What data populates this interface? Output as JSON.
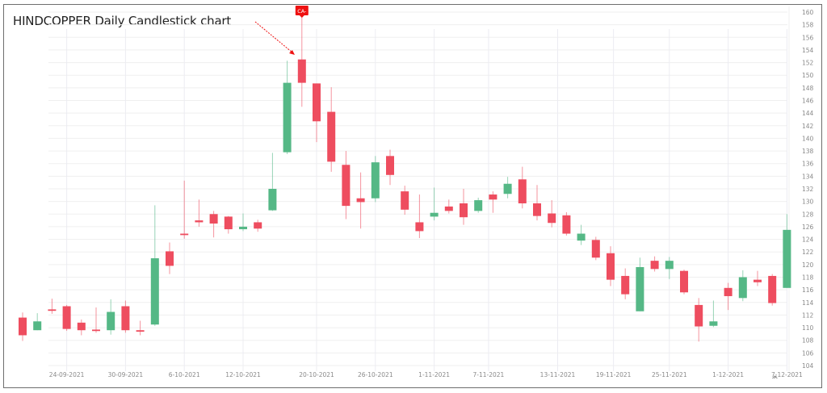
{
  "title": "HINDCOPPER Daily Candlestick chart",
  "marker": {
    "label": "CA-",
    "color": "#ee1111",
    "candle_index": 19
  },
  "colors": {
    "up": "#55b886",
    "down": "#ee4d5f",
    "grid": "#efefef",
    "axis_text": "#8a8a8a",
    "arrow": "#ee1111"
  },
  "chart_data": {
    "type": "candlestick",
    "title": "HINDCOPPER Daily Candlestick chart",
    "xlabel": "",
    "ylabel": "",
    "ylim": [
      104,
      160
    ],
    "y_ticks": [
      104,
      106,
      108,
      110,
      112,
      114,
      116,
      118,
      120,
      122,
      124,
      126,
      128,
      130,
      132,
      134,
      136,
      138,
      140,
      142,
      144,
      146,
      148,
      150,
      152,
      154,
      156,
      158,
      160
    ],
    "y_axis_position": "right",
    "grid": true,
    "x_tick_labels": [
      {
        "label": "24-09-2021",
        "index": 3
      },
      {
        "label": "30-09-2021",
        "index": 7
      },
      {
        "label": "6-10-2021",
        "index": 11
      },
      {
        "label": "12-10-2021",
        "index": 15
      },
      {
        "label": "20-10-2021",
        "index": 20
      },
      {
        "label": "26-10-2021",
        "index": 24
      },
      {
        "label": "1-11-2021",
        "index": 28
      },
      {
        "label": "7-11-2021",
        "index": 31.7
      },
      {
        "label": "13-11-2021",
        "index": 36.4
      },
      {
        "label": "19-11-2021",
        "index": 40.2
      },
      {
        "label": "25-11-2021",
        "index": 44
      },
      {
        "label": "1-12-2021",
        "index": 48
      },
      {
        "label": "7-12-2021",
        "index": 52
      }
    ],
    "annotations": [
      {
        "text": "CA-",
        "type": "flag",
        "at_index": 19
      },
      {
        "type": "arrow",
        "dashed": true,
        "points_to_index": 19
      }
    ],
    "candles": [
      {
        "o": 111.6,
        "h": 112.4,
        "l": 107.9,
        "c": 108.8
      },
      {
        "o": 109.6,
        "h": 112.3,
        "l": 109.6,
        "c": 111.0
      },
      {
        "o": 112.9,
        "h": 114.6,
        "l": 112.2,
        "c": 112.7
      },
      {
        "o": 113.4,
        "h": 113.6,
        "l": 109.5,
        "c": 109.8
      },
      {
        "o": 110.8,
        "h": 111.3,
        "l": 108.8,
        "c": 109.6
      },
      {
        "o": 109.7,
        "h": 113.2,
        "l": 109.2,
        "c": 109.5
      },
      {
        "o": 109.6,
        "h": 114.5,
        "l": 108.9,
        "c": 112.5
      },
      {
        "o": 113.4,
        "h": 114.3,
        "l": 109.2,
        "c": 109.6
      },
      {
        "o": 109.6,
        "h": 111.1,
        "l": 108.8,
        "c": 109.4
      },
      {
        "o": 110.5,
        "h": 129.4,
        "l": 110.3,
        "c": 121.0
      },
      {
        "o": 122.1,
        "h": 123.5,
        "l": 118.5,
        "c": 119.8
      },
      {
        "o": 124.9,
        "h": 133.3,
        "l": 124.1,
        "c": 124.7
      },
      {
        "o": 127.0,
        "h": 130.3,
        "l": 126.0,
        "c": 126.7
      },
      {
        "o": 128.0,
        "h": 128.5,
        "l": 124.3,
        "c": 126.5
      },
      {
        "o": 127.6,
        "h": 127.7,
        "l": 124.9,
        "c": 125.6
      },
      {
        "o": 125.6,
        "h": 128.1,
        "l": 125.3,
        "c": 126.0
      },
      {
        "o": 126.7,
        "h": 127.1,
        "l": 125.2,
        "c": 125.7
      },
      {
        "o": 128.6,
        "h": 137.7,
        "l": 128.5,
        "c": 132.0
      },
      {
        "o": 137.8,
        "h": 152.3,
        "l": 137.5,
        "c": 148.8
      },
      {
        "o": 152.5,
        "h": 159.8,
        "l": 145.0,
        "c": 148.8
      },
      {
        "o": 148.7,
        "h": 148.6,
        "l": 139.4,
        "c": 142.7
      },
      {
        "o": 144.2,
        "h": 148.1,
        "l": 134.7,
        "c": 136.3
      },
      {
        "o": 135.8,
        "h": 138.0,
        "l": 127.2,
        "c": 129.3
      },
      {
        "o": 130.5,
        "h": 134.6,
        "l": 125.7,
        "c": 129.9
      },
      {
        "o": 130.5,
        "h": 137.2,
        "l": 129.9,
        "c": 136.2
      },
      {
        "o": 137.2,
        "h": 138.2,
        "l": 132.6,
        "c": 134.2
      },
      {
        "o": 131.6,
        "h": 132.5,
        "l": 127.9,
        "c": 128.7
      },
      {
        "o": 126.7,
        "h": 131.1,
        "l": 124.2,
        "c": 125.3
      },
      {
        "o": 127.6,
        "h": 132.2,
        "l": 127.0,
        "c": 128.2
      },
      {
        "o": 129.2,
        "h": 130.3,
        "l": 128.1,
        "c": 128.5
      },
      {
        "o": 129.7,
        "h": 132.0,
        "l": 126.3,
        "c": 127.5
      },
      {
        "o": 128.5,
        "h": 130.6,
        "l": 128.2,
        "c": 130.2
      },
      {
        "o": 131.1,
        "h": 131.6,
        "l": 128.2,
        "c": 130.3
      },
      {
        "o": 131.2,
        "h": 133.9,
        "l": 130.5,
        "c": 132.8
      },
      {
        "o": 133.5,
        "h": 135.5,
        "l": 128.9,
        "c": 129.7
      },
      {
        "o": 129.7,
        "h": 132.6,
        "l": 127.0,
        "c": 127.7
      },
      {
        "o": 128.1,
        "h": 130.2,
        "l": 125.9,
        "c": 126.6
      },
      {
        "o": 127.8,
        "h": 128.3,
        "l": 124.6,
        "c": 124.9
      },
      {
        "o": 123.8,
        "h": 126.3,
        "l": 123.1,
        "c": 124.9
      },
      {
        "o": 123.9,
        "h": 124.4,
        "l": 120.7,
        "c": 121.1
      },
      {
        "o": 121.8,
        "h": 122.9,
        "l": 116.6,
        "c": 117.6
      },
      {
        "o": 118.2,
        "h": 119.4,
        "l": 114.5,
        "c": 115.3
      },
      {
        "o": 112.6,
        "h": 121.1,
        "l": 112.6,
        "c": 119.6
      },
      {
        "o": 120.6,
        "h": 121.3,
        "l": 118.9,
        "c": 119.3
      },
      {
        "o": 119.3,
        "h": 121.2,
        "l": 117.7,
        "c": 120.6
      },
      {
        "o": 119.0,
        "h": 119.2,
        "l": 115.3,
        "c": 115.6
      },
      {
        "o": 113.6,
        "h": 114.7,
        "l": 107.8,
        "c": 110.2
      },
      {
        "o": 110.3,
        "h": 114.3,
        "l": 110.1,
        "c": 111.0
      },
      {
        "o": 116.3,
        "h": 117.1,
        "l": 112.8,
        "c": 115.0
      },
      {
        "o": 114.7,
        "h": 119.1,
        "l": 114.2,
        "c": 118.0
      },
      {
        "o": 117.6,
        "h": 119.0,
        "l": 116.6,
        "c": 117.2
      },
      {
        "o": 118.2,
        "h": 118.5,
        "l": 113.5,
        "c": 113.9
      },
      {
        "o": 116.3,
        "h": 128.0,
        "l": 116.3,
        "c": 125.5
      }
    ]
  }
}
